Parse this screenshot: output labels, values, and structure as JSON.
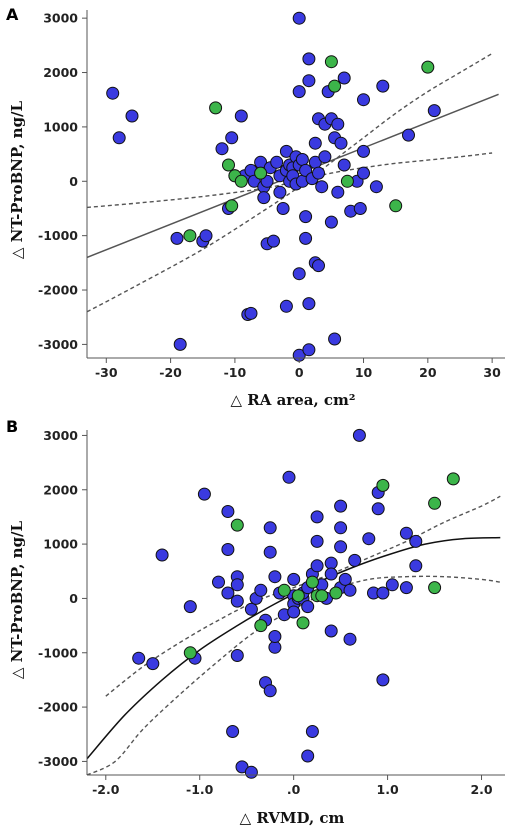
{
  "chart_data": [
    {
      "panel": "A",
      "type": "scatter",
      "xlabel": "△ RA area, cm²",
      "ylabel": "△ NT-ProBNP, ng/L",
      "xlim": [
        -33,
        32
      ],
      "ylim": [
        -3250,
        3150
      ],
      "xticks": [
        -30,
        -20,
        -10,
        0,
        10,
        20,
        30
      ],
      "xtick_labels": [
        "-30",
        "-20",
        "-10",
        "0",
        "10",
        "20",
        "30"
      ],
      "yticks": [
        -3000,
        -2000,
        -1000,
        0,
        1000,
        2000,
        3000
      ],
      "ytick_labels": [
        "-3000",
        "-2000",
        "-1000",
        "0",
        "1000",
        "2000",
        "3000"
      ],
      "grid": false,
      "colors": {
        "blue": "#3a3ae0",
        "green": "#3cb54a",
        "outline": "#111111",
        "fit": "#555555"
      },
      "fit_line": {
        "x": [
          -33,
          31
        ],
        "y": [
          -1400,
          1600
        ]
      },
      "ci_upper": {
        "x": [
          -33,
          -25,
          -15,
          -5,
          0,
          5,
          10,
          15,
          20,
          25,
          30
        ],
        "y": [
          -2400,
          -1900,
          -1250,
          -500,
          -100,
          350,
          800,
          1250,
          1650,
          2000,
          2350
        ]
      },
      "ci_lower": {
        "x": [
          -33,
          -25,
          -15,
          -5,
          0,
          5,
          10,
          15,
          20,
          25,
          30
        ],
        "y": [
          -480,
          -400,
          -280,
          -120,
          20,
          150,
          250,
          330,
          390,
          450,
          520
        ]
      },
      "series": [
        {
          "color": "blue",
          "points": [
            [
              -29,
              1620
            ],
            [
              -28,
              800
            ],
            [
              -26,
              1200
            ],
            [
              -19,
              -1050
            ],
            [
              -18.5,
              -3000
            ],
            [
              -15,
              -1100
            ],
            [
              -14.5,
              -1000
            ],
            [
              -12,
              600
            ],
            [
              -11,
              -500
            ],
            [
              -10.5,
              800
            ],
            [
              -10,
              100
            ],
            [
              -9,
              1200
            ],
            [
              -8.5,
              100
            ],
            [
              -8,
              -2450
            ],
            [
              -7.5,
              -2430
            ],
            [
              -7.5,
              200
            ],
            [
              -7,
              0
            ],
            [
              -6,
              350
            ],
            [
              -5.5,
              -100
            ],
            [
              -5.5,
              -300
            ],
            [
              -5,
              0
            ],
            [
              -5,
              -1150
            ],
            [
              -4.5,
              250
            ],
            [
              -4,
              -1100
            ],
            [
              -3.5,
              350
            ],
            [
              -3,
              100
            ],
            [
              -3,
              -200
            ],
            [
              -2.5,
              -500
            ],
            [
              -2,
              550
            ],
            [
              -2,
              200
            ],
            [
              -2,
              -2300
            ],
            [
              -1.5,
              0
            ],
            [
              -1.5,
              300
            ],
            [
              -1,
              250
            ],
            [
              -1,
              100
            ],
            [
              -0.5,
              450
            ],
            [
              -0.5,
              -50
            ],
            [
              0,
              3000
            ],
            [
              0,
              1650
            ],
            [
              0,
              300
            ],
            [
              0,
              -1700
            ],
            [
              0,
              -3200
            ],
            [
              0.5,
              400
            ],
            [
              0.5,
              0
            ],
            [
              1,
              200
            ],
            [
              1,
              -650
            ],
            [
              1,
              -1050
            ],
            [
              1.5,
              2250
            ],
            [
              1.5,
              1850
            ],
            [
              1.5,
              -2250
            ],
            [
              1.5,
              -3100
            ],
            [
              2,
              50
            ],
            [
              2.5,
              700
            ],
            [
              2.5,
              350
            ],
            [
              2.5,
              -1500
            ],
            [
              3,
              1150
            ],
            [
              3,
              150
            ],
            [
              3,
              -1550
            ],
            [
              3.5,
              -100
            ],
            [
              4,
              1050
            ],
            [
              4,
              450
            ],
            [
              4.5,
              1650
            ],
            [
              5,
              1150
            ],
            [
              5,
              -750
            ],
            [
              5.5,
              -2900
            ],
            [
              5.5,
              800
            ],
            [
              6,
              1050
            ],
            [
              6,
              -200
            ],
            [
              6.5,
              700
            ],
            [
              7,
              1900
            ],
            [
              7,
              300
            ],
            [
              8,
              -550
            ],
            [
              9,
              0
            ],
            [
              9.5,
              -500
            ],
            [
              10,
              1500
            ],
            [
              10,
              550
            ],
            [
              10,
              150
            ],
            [
              12,
              -100
            ],
            [
              13,
              1750
            ],
            [
              17,
              850
            ],
            [
              21,
              1300
            ]
          ]
        },
        {
          "color": "green",
          "points": [
            [
              -17,
              -1000
            ],
            [
              -13,
              1350
            ],
            [
              -11,
              300
            ],
            [
              -10.5,
              -450
            ],
            [
              -10,
              100
            ],
            [
              -9,
              0
            ],
            [
              -6,
              150
            ],
            [
              5,
              2200
            ],
            [
              5.5,
              1750
            ],
            [
              7.5,
              0
            ],
            [
              15,
              -450
            ],
            [
              20,
              2100
            ]
          ]
        }
      ]
    },
    {
      "panel": "B",
      "type": "scatter",
      "xlabel": "△ RVMD, cm",
      "ylabel": "△ NT-ProBNP, ng/L",
      "xlim": [
        -2.2,
        2.25
      ],
      "ylim": [
        -3250,
        3100
      ],
      "xticks": [
        -2.0,
        -1.0,
        0,
        1.0,
        2.0
      ],
      "xtick_labels": [
        "-2.0",
        "-1.0",
        ".0",
        "1.0",
        "2.0"
      ],
      "yticks": [
        -3000,
        -2000,
        -1000,
        0,
        1000,
        2000,
        3000
      ],
      "ytick_labels": [
        "-3000",
        "-2000",
        "-1000",
        "0",
        "1000",
        "2000",
        "3000"
      ],
      "grid": false,
      "colors": {
        "blue": "#3a3ae0",
        "green": "#3cb54a",
        "outline": "#111111",
        "fit": "#111111"
      },
      "fit_curve": {
        "x": [
          -2.2,
          -1.8,
          -1.4,
          -1.0,
          -0.6,
          -0.2,
          0.2,
          0.6,
          1.0,
          1.4,
          1.8,
          2.2
        ],
        "y": [
          -2950,
          -2150,
          -1500,
          -950,
          -500,
          -100,
          250,
          550,
          800,
          1000,
          1100,
          1120
        ]
      },
      "ci_upper": {
        "x": [
          -2.0,
          -1.6,
          -1.2,
          -0.8,
          -0.4,
          0,
          0.4,
          0.8,
          1.2,
          1.6,
          2.0,
          2.2
        ],
        "y": [
          -1800,
          -1250,
          -800,
          -400,
          -50,
          200,
          450,
          750,
          1050,
          1400,
          1700,
          1880
        ]
      },
      "ci_lower": {
        "x": [
          -2.2,
          -1.9,
          -1.6,
          -1.2,
          -0.8,
          -0.4,
          0,
          0.4,
          0.8,
          1.2,
          1.6,
          2.0,
          2.2
        ],
        "y": [
          -3250,
          -3000,
          -2400,
          -1750,
          -1150,
          -600,
          -200,
          150,
          350,
          400,
          400,
          350,
          300
        ]
      },
      "series": [
        {
          "color": "blue",
          "points": [
            [
              -1.65,
              -1100
            ],
            [
              -1.5,
              -1200
            ],
            [
              -1.4,
              800
            ],
            [
              -1.1,
              -150
            ],
            [
              -1.05,
              -1100
            ],
            [
              -0.95,
              1920
            ],
            [
              -0.8,
              300
            ],
            [
              -0.7,
              1600
            ],
            [
              -0.7,
              900
            ],
            [
              -0.7,
              100
            ],
            [
              -0.65,
              -2450
            ],
            [
              -0.6,
              400
            ],
            [
              -0.6,
              250
            ],
            [
              -0.6,
              -50
            ],
            [
              -0.6,
              -1050
            ],
            [
              -0.55,
              -3100
            ],
            [
              -0.45,
              -3200
            ],
            [
              -0.45,
              -200
            ],
            [
              -0.4,
              0
            ],
            [
              -0.35,
              150
            ],
            [
              -0.3,
              -400
            ],
            [
              -0.3,
              -1550
            ],
            [
              -0.25,
              1300
            ],
            [
              -0.25,
              850
            ],
            [
              -0.25,
              -1700
            ],
            [
              -0.2,
              -900
            ],
            [
              -0.2,
              -700
            ],
            [
              -0.2,
              400
            ],
            [
              -0.15,
              100
            ],
            [
              -0.1,
              -300
            ],
            [
              -0.05,
              2230
            ],
            [
              0,
              350
            ],
            [
              0,
              50
            ],
            [
              0,
              -100
            ],
            [
              0,
              -250
            ],
            [
              0.05,
              0
            ],
            [
              0.1,
              0
            ],
            [
              0.1,
              100
            ],
            [
              0.15,
              -2900
            ],
            [
              0.15,
              200
            ],
            [
              0.15,
              -150
            ],
            [
              0.2,
              -2450
            ],
            [
              0.2,
              450
            ],
            [
              0.25,
              1500
            ],
            [
              0.25,
              1050
            ],
            [
              0.25,
              600
            ],
            [
              0.3,
              250
            ],
            [
              0.35,
              0
            ],
            [
              0.4,
              650
            ],
            [
              0.4,
              450
            ],
            [
              0.4,
              -600
            ],
            [
              0.5,
              1700
            ],
            [
              0.5,
              1300
            ],
            [
              0.5,
              950
            ],
            [
              0.5,
              200
            ],
            [
              0.55,
              350
            ],
            [
              0.6,
              150
            ],
            [
              0.6,
              -750
            ],
            [
              0.65,
              700
            ],
            [
              0.7,
              3000
            ],
            [
              0.8,
              1100
            ],
            [
              0.85,
              100
            ],
            [
              0.9,
              1650
            ],
            [
              0.9,
              1950
            ],
            [
              0.95,
              100
            ],
            [
              0.95,
              -1500
            ],
            [
              1.05,
              250
            ],
            [
              1.2,
              1200
            ],
            [
              1.2,
              200
            ],
            [
              1.3,
              1050
            ],
            [
              1.3,
              600
            ]
          ]
        },
        {
          "color": "green",
          "points": [
            [
              -1.1,
              -1000
            ],
            [
              -0.6,
              1350
            ],
            [
              -0.35,
              -500
            ],
            [
              -0.1,
              150
            ],
            [
              0.05,
              50
            ],
            [
              0.1,
              -450
            ],
            [
              0.2,
              300
            ],
            [
              0.25,
              50
            ],
            [
              0.3,
              50
            ],
            [
              0.45,
              100
            ],
            [
              0.95,
              2080
            ],
            [
              1.5,
              1750
            ],
            [
              1.5,
              200
            ],
            [
              1.7,
              2200
            ]
          ]
        }
      ]
    }
  ]
}
